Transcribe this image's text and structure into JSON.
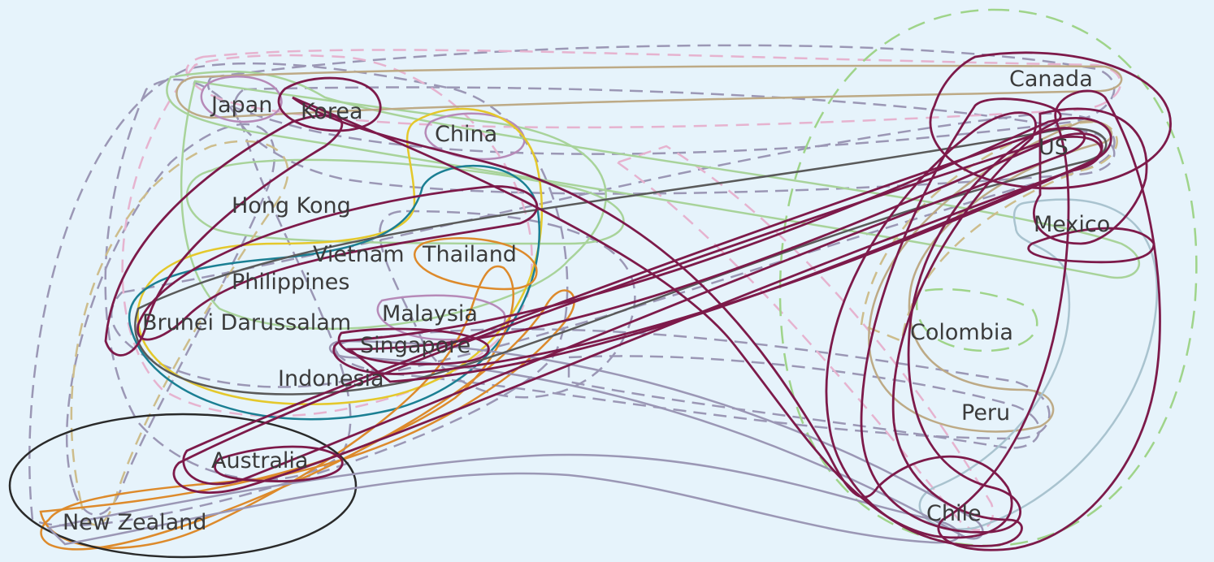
{
  "diagram": {
    "background": "#e6f3fb",
    "countries": [
      {
        "key": "japan",
        "label": "Japan"
      },
      {
        "key": "korea",
        "label": "Korea"
      },
      {
        "key": "china",
        "label": "China"
      },
      {
        "key": "hongkong",
        "label": "Hong Kong"
      },
      {
        "key": "vietnam",
        "label": "Vietnam"
      },
      {
        "key": "thailand",
        "label": "Thailand"
      },
      {
        "key": "philippines",
        "label": "Philippines"
      },
      {
        "key": "brunei",
        "label": "Brunei Darussalam"
      },
      {
        "key": "malaysia",
        "label": "Malaysia"
      },
      {
        "key": "singapore",
        "label": "Singapore"
      },
      {
        "key": "indonesia",
        "label": "Indonesia"
      },
      {
        "key": "australia",
        "label": "Australia"
      },
      {
        "key": "newzealand",
        "label": "New Zealand"
      },
      {
        "key": "canada",
        "label": "Canada"
      },
      {
        "key": "us",
        "label": "US"
      },
      {
        "key": "mexico",
        "label": "Mexico"
      },
      {
        "key": "colombia",
        "label": "Colombia"
      },
      {
        "key": "peru",
        "label": "Peru"
      },
      {
        "key": "chile",
        "label": "Chile"
      }
    ],
    "colors": {
      "purple": "#7d1a4a",
      "grey_dash": "#9b97b5",
      "green": "#a8d39a",
      "green_dash": "#9fd48a",
      "pink_dash": "#e6b3cf",
      "tan": "#bdaa86",
      "khaki_dash": "#cdbd8c",
      "orange": "#dd8a2b",
      "yellow": "#e4c82b",
      "teal": "#1b7f93",
      "dark_grey": "#5a5a5a",
      "black": "#2a2a2a",
      "light_blue": "#a9c3cf",
      "mauve": "#b68ab8"
    }
  }
}
